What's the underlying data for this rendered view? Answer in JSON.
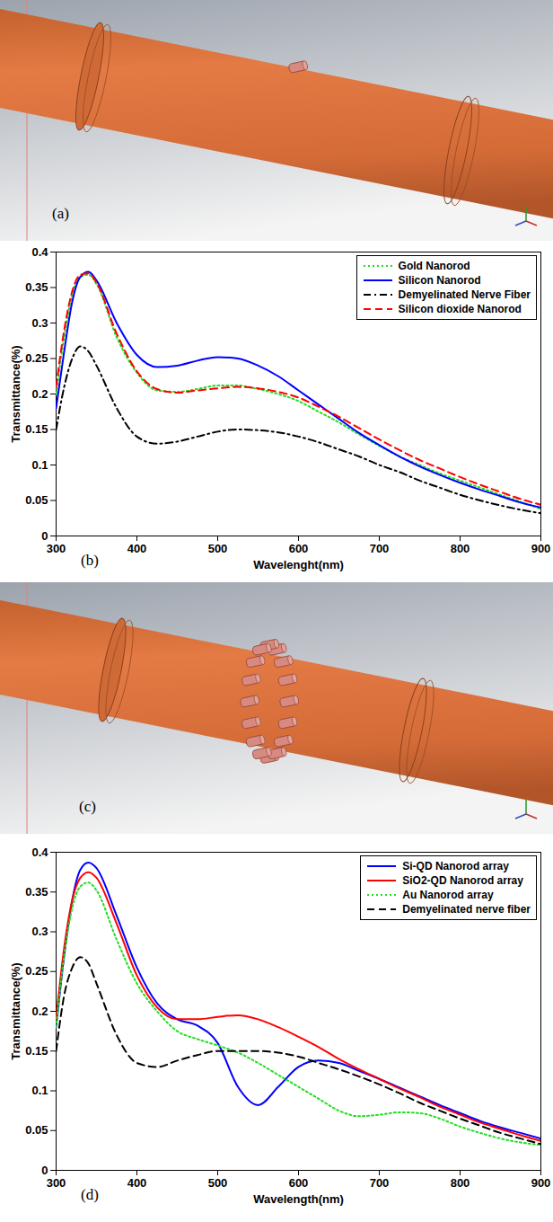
{
  "chart_data": [
    {
      "type": "line",
      "panel": "(b)",
      "xlabel": "Wavelenght(nm)",
      "ylabel": "Transmittance(%)",
      "x": [
        300,
        310,
        320,
        330,
        340,
        350,
        375,
        400,
        425,
        450,
        475,
        500,
        525,
        550,
        575,
        600,
        625,
        650,
        675,
        700,
        725,
        750,
        775,
        800,
        825,
        850,
        875,
        900
      ],
      "xlim": [
        300,
        900
      ],
      "xticks": [
        300,
        400,
        500,
        600,
        700,
        800,
        900
      ],
      "ylim": [
        0,
        0.4
      ],
      "yticks": [
        0,
        0.05,
        0.1,
        0.15,
        0.2,
        0.25,
        0.3,
        0.35,
        0.4
      ],
      "legend": "upper right",
      "series": [
        {
          "name": "Gold Nanorod",
          "color": "#22dd22",
          "line_style": "dotted",
          "values": [
            0.2,
            0.28,
            0.34,
            0.365,
            0.368,
            0.355,
            0.28,
            0.23,
            0.205,
            0.203,
            0.207,
            0.212,
            0.212,
            0.207,
            0.2,
            0.19,
            0.175,
            0.16,
            0.143,
            0.127,
            0.112,
            0.1,
            0.088,
            0.078,
            0.068,
            0.058,
            0.048,
            0.038
          ]
        },
        {
          "name": "Silicon Nanorod",
          "color": "#0000ff",
          "line_style": "solid",
          "values": [
            0.18,
            0.26,
            0.33,
            0.365,
            0.372,
            0.36,
            0.3,
            0.255,
            0.238,
            0.24,
            0.247,
            0.252,
            0.25,
            0.24,
            0.225,
            0.205,
            0.185,
            0.165,
            0.145,
            0.128,
            0.112,
            0.098,
            0.086,
            0.075,
            0.065,
            0.056,
            0.047,
            0.04
          ]
        },
        {
          "name": "Demyelinated Nerve Fiber",
          "color": "#000000",
          "line_style": "dashdot",
          "values": [
            0.15,
            0.21,
            0.25,
            0.267,
            0.26,
            0.24,
            0.18,
            0.14,
            0.13,
            0.133,
            0.14,
            0.147,
            0.15,
            0.149,
            0.146,
            0.14,
            0.132,
            0.122,
            0.112,
            0.1,
            0.09,
            0.078,
            0.068,
            0.058,
            0.05,
            0.043,
            0.037,
            0.032
          ]
        },
        {
          "name": "Silicon dioxide Nanorod",
          "color": "#ff0000",
          "line_style": "dashed",
          "values": [
            0.21,
            0.29,
            0.345,
            0.368,
            0.37,
            0.357,
            0.285,
            0.232,
            0.207,
            0.202,
            0.205,
            0.208,
            0.21,
            0.208,
            0.203,
            0.195,
            0.182,
            0.168,
            0.152,
            0.136,
            0.121,
            0.107,
            0.095,
            0.083,
            0.072,
            0.062,
            0.052,
            0.044
          ]
        }
      ]
    },
    {
      "type": "line",
      "panel": "(d)",
      "xlabel": "Wavelength(nm)",
      "ylabel": "Transmittance(%)",
      "x": [
        300,
        310,
        320,
        330,
        340,
        350,
        375,
        400,
        425,
        450,
        475,
        500,
        525,
        550,
        575,
        600,
        625,
        650,
        675,
        700,
        725,
        750,
        775,
        800,
        825,
        850,
        875,
        900
      ],
      "xlim": [
        300,
        900
      ],
      "xticks": [
        300,
        400,
        500,
        600,
        700,
        800,
        900
      ],
      "ylim": [
        0,
        0.4
      ],
      "yticks": [
        0,
        0.05,
        0.1,
        0.15,
        0.2,
        0.25,
        0.3,
        0.35,
        0.4
      ],
      "legend": "upper right",
      "series": [
        {
          "name": "Si-QD Nanorod array",
          "color": "#0000ff",
          "line_style": "solid",
          "values": [
            0.18,
            0.27,
            0.34,
            0.378,
            0.387,
            0.38,
            0.32,
            0.255,
            0.21,
            0.19,
            0.182,
            0.16,
            0.105,
            0.082,
            0.105,
            0.13,
            0.138,
            0.135,
            0.125,
            0.115,
            0.104,
            0.093,
            0.082,
            0.072,
            0.062,
            0.054,
            0.047,
            0.04
          ]
        },
        {
          "name": "SiO2-QD Nanorod array",
          "color": "#ff0000",
          "line_style": "solid",
          "values": [
            0.19,
            0.28,
            0.34,
            0.368,
            0.375,
            0.368,
            0.31,
            0.245,
            0.205,
            0.19,
            0.19,
            0.193,
            0.195,
            0.19,
            0.18,
            0.168,
            0.155,
            0.14,
            0.127,
            0.115,
            0.103,
            0.092,
            0.08,
            0.07,
            0.06,
            0.052,
            0.044,
            0.037
          ]
        },
        {
          "name": "Au Nanorod array",
          "color": "#22dd22",
          "line_style": "dotted",
          "values": [
            0.18,
            0.27,
            0.33,
            0.357,
            0.362,
            0.352,
            0.29,
            0.235,
            0.2,
            0.175,
            0.165,
            0.157,
            0.148,
            0.135,
            0.12,
            0.105,
            0.09,
            0.075,
            0.068,
            0.07,
            0.073,
            0.072,
            0.065,
            0.055,
            0.047,
            0.04,
            0.035,
            0.032
          ]
        },
        {
          "name": "Demyelinated nerve fiber",
          "color": "#000000",
          "line_style": "dashed",
          "values": [
            0.15,
            0.22,
            0.255,
            0.268,
            0.26,
            0.235,
            0.17,
            0.135,
            0.13,
            0.138,
            0.145,
            0.15,
            0.15,
            0.15,
            0.148,
            0.143,
            0.135,
            0.127,
            0.118,
            0.108,
            0.097,
            0.085,
            0.075,
            0.065,
            0.056,
            0.047,
            0.04,
            0.033
          ]
        }
      ]
    }
  ],
  "renders": [
    {
      "panel": "(a)"
    },
    {
      "panel": "(c)"
    }
  ]
}
